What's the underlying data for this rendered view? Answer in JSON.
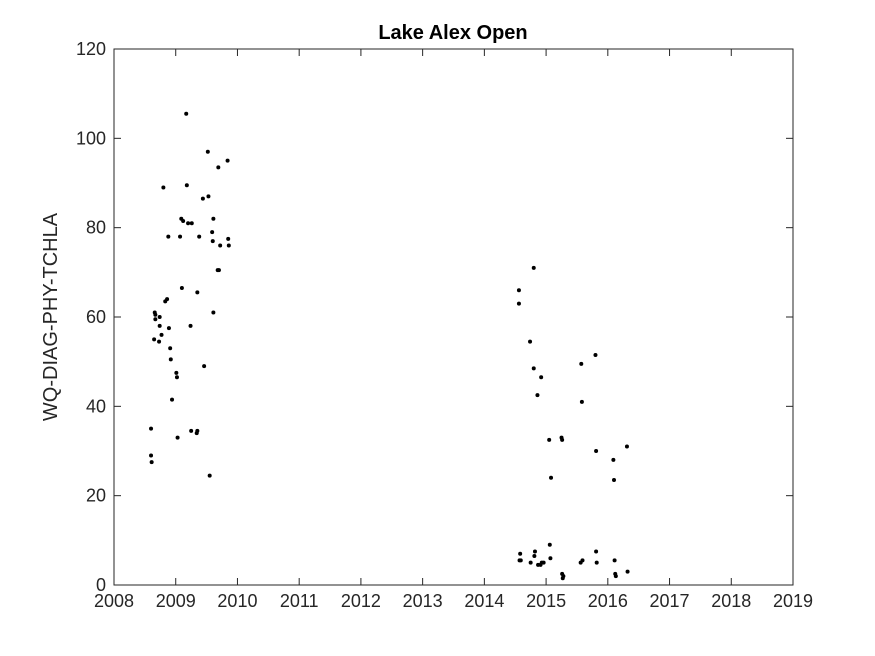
{
  "chart_data": {
    "type": "scatter",
    "title": "Lake Alex Open",
    "xlabel": "",
    "ylabel": "WQ-DIAG-PHY-TCHLA",
    "xlim": [
      2008,
      2019
    ],
    "ylim": [
      0,
      120
    ],
    "xticks": [
      "2008",
      "2009",
      "2010",
      "2011",
      "2012",
      "2013",
      "2014",
      "2015",
      "2016",
      "2017",
      "2018",
      "2019"
    ],
    "yticks": [
      "0",
      "20",
      "40",
      "60",
      "80",
      "100",
      "120"
    ],
    "grid": false,
    "marker_color": "#000000",
    "series": [
      {
        "x": [
          2008.6,
          2008.6,
          2008.61,
          2008.65,
          2008.66,
          2008.67,
          2008.67,
          2008.73,
          2008.74,
          2008.74,
          2008.77,
          2008.8,
          2008.83,
          2008.86,
          2008.88,
          2008.89,
          2008.91,
          2008.92,
          2008.94,
          2009.01,
          2009.02,
          2009.03,
          2009.07,
          2009.09,
          2009.1,
          2009.12,
          2009.17,
          2009.18,
          2009.2,
          2009.24,
          2009.25,
          2009.26,
          2009.34,
          2009.35,
          2009.35,
          2009.38,
          2009.44,
          2009.46,
          2009.52,
          2009.53,
          2009.55,
          2009.59,
          2009.6,
          2009.61,
          2009.61,
          2009.68,
          2009.69,
          2009.7,
          2009.72,
          2009.84,
          2009.85,
          2009.86
        ],
        "y": [
          35.0,
          29.0,
          27.5,
          55.0,
          61.0,
          59.5,
          60.5,
          54.5,
          60.0,
          58.0,
          56.0,
          89.0,
          63.5,
          64.0,
          78.0,
          57.5,
          53.0,
          50.5,
          41.5,
          47.5,
          46.5,
          33.0,
          78.0,
          82.0,
          66.5,
          81.5,
          105.5,
          89.5,
          81.0,
          58.0,
          34.5,
          81.0,
          34.0,
          34.5,
          65.5,
          78.0,
          86.5,
          49.0,
          97.0,
          87.0,
          24.5,
          79.0,
          77.0,
          61.0,
          82.0,
          70.5,
          93.5,
          70.5,
          76.0,
          95.0,
          77.5,
          76.0
        ]
      },
      {
        "x": [
          2014.56,
          2014.56,
          2014.57,
          2014.58,
          2014.59,
          2014.74,
          2014.75,
          2014.8,
          2014.8,
          2014.81,
          2014.82,
          2014.86,
          2014.87,
          2014.91,
          2014.92,
          2014.93,
          2014.96,
          2015.05,
          2015.06,
          2015.07,
          2015.08,
          2015.25,
          2015.26,
          2015.26,
          2015.27,
          2015.28,
          2015.56,
          2015.57,
          2015.58,
          2015.59,
          2015.8,
          2015.81,
          2015.81,
          2015.82,
          2016.09,
          2016.1,
          2016.11,
          2016.12,
          2016.13,
          2016.31,
          2016.32
        ],
        "y": [
          66.0,
          63.0,
          5.5,
          7.0,
          5.5,
          54.5,
          5.0,
          71.0,
          48.5,
          6.5,
          7.5,
          42.5,
          4.5,
          4.5,
          46.5,
          5.0,
          5.0,
          32.5,
          9.0,
          6.0,
          24.0,
          33.0,
          32.5,
          2.5,
          1.5,
          2.0,
          5.0,
          49.5,
          41.0,
          5.5,
          51.5,
          30.0,
          7.5,
          5.0,
          28.0,
          23.5,
          5.5,
          2.5,
          2.0,
          31.0,
          3.0
        ]
      }
    ]
  }
}
